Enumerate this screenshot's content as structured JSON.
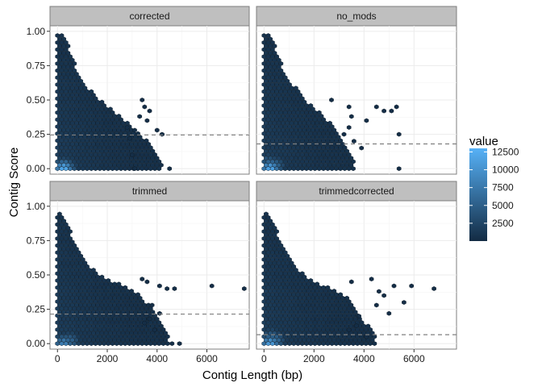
{
  "chart_data": {
    "type": "heatmap",
    "subtype": "hexbin",
    "xlabel": "Contig Length (bp)",
    "ylabel": "Contig Score",
    "xlim": [
      -300,
      7700
    ],
    "ylim": [
      -0.04,
      1.04
    ],
    "x_ticks": [
      0,
      2000,
      4000,
      6000
    ],
    "x_tick_labels": [
      "0",
      "2000",
      "4000",
      "6000"
    ],
    "y_ticks": [
      0,
      0.25,
      0.5,
      0.75,
      1.0
    ],
    "y_tick_labels": [
      "0.00",
      "0.25",
      "0.50",
      "0.75",
      "1.00"
    ],
    "grid": true,
    "legend": {
      "title": "value",
      "placement": "right",
      "min": 0,
      "max": 13000,
      "breaks": [
        2500,
        5000,
        7500,
        10000,
        12500
      ],
      "break_labels": [
        "2500",
        "5000",
        "7500",
        "10000",
        "12500"
      ],
      "low_color": "#132B43",
      "high_color": "#56B1F7"
    },
    "hex_size_x": 170,
    "hex_size_y": 0.0255,
    "panels": [
      {
        "name": "corrected",
        "hline": 0.245,
        "envelope": [
          [
            0,
            1.0
          ],
          [
            300,
            0.97
          ],
          [
            600,
            0.8
          ],
          [
            900,
            0.68
          ],
          [
            1200,
            0.6
          ],
          [
            1500,
            0.53
          ],
          [
            1800,
            0.5
          ],
          [
            2100,
            0.44
          ],
          [
            2400,
            0.4
          ],
          [
            2700,
            0.36
          ],
          [
            3000,
            0.3
          ],
          [
            3300,
            0.25
          ],
          [
            3600,
            0.2
          ],
          [
            3900,
            0.12
          ],
          [
            4200,
            0.05
          ]
        ],
        "outliers": [
          [
            3400,
            0.5
          ],
          [
            3500,
            0.45
          ],
          [
            3700,
            0.42
          ],
          [
            3300,
            0.38
          ],
          [
            3600,
            0.35
          ],
          [
            4200,
            0.25
          ],
          [
            4000,
            0.28
          ],
          [
            2800,
            0.3
          ],
          [
            3100,
            0.28
          ],
          [
            4500,
            0.0
          ],
          [
            2900,
            0.22
          ],
          [
            3000,
            0.1
          ],
          [
            3100,
            0.0
          ]
        ],
        "hotspots": [
          [
            250,
            0.0,
            12500
          ],
          [
            400,
            0.0,
            7000
          ],
          [
            150,
            0.02,
            5000
          ]
        ]
      },
      {
        "name": "no_mods",
        "hline": 0.18,
        "envelope": [
          [
            0,
            1.0
          ],
          [
            300,
            0.97
          ],
          [
            600,
            0.8
          ],
          [
            900,
            0.68
          ],
          [
            1200,
            0.6
          ],
          [
            1500,
            0.55
          ],
          [
            1800,
            0.48
          ],
          [
            2100,
            0.43
          ],
          [
            2400,
            0.38
          ],
          [
            2700,
            0.33
          ],
          [
            3000,
            0.25
          ],
          [
            3300,
            0.15
          ],
          [
            3600,
            0.05
          ]
        ],
        "outliers": [
          [
            2700,
            0.5
          ],
          [
            3400,
            0.45
          ],
          [
            4500,
            0.45
          ],
          [
            4800,
            0.42
          ],
          [
            5100,
            0.42
          ],
          [
            5300,
            0.45
          ],
          [
            5400,
            0.25
          ],
          [
            3500,
            0.38
          ],
          [
            3200,
            0.25
          ],
          [
            3600,
            0.2
          ],
          [
            3900,
            0.15
          ],
          [
            3400,
            0.3
          ],
          [
            5400,
            0.0
          ],
          [
            4100,
            0.35
          ]
        ],
        "hotspots": [
          [
            250,
            0.0,
            12000
          ],
          [
            450,
            0.02,
            6000
          ],
          [
            150,
            0.05,
            4500
          ]
        ]
      },
      {
        "name": "trimmed",
        "hline": 0.215,
        "envelope": [
          [
            0,
            0.96
          ],
          [
            300,
            0.92
          ],
          [
            600,
            0.78
          ],
          [
            900,
            0.65
          ],
          [
            1200,
            0.58
          ],
          [
            1500,
            0.53
          ],
          [
            1800,
            0.5
          ],
          [
            2100,
            0.47
          ],
          [
            2400,
            0.44
          ],
          [
            2700,
            0.42
          ],
          [
            3000,
            0.4
          ],
          [
            3300,
            0.35
          ],
          [
            3600,
            0.3
          ],
          [
            3900,
            0.22
          ],
          [
            4200,
            0.15
          ],
          [
            4500,
            0.05
          ]
        ],
        "outliers": [
          [
            3400,
            0.47
          ],
          [
            3600,
            0.45
          ],
          [
            4100,
            0.42
          ],
          [
            4400,
            0.4
          ],
          [
            4700,
            0.4
          ],
          [
            6200,
            0.42
          ],
          [
            7500,
            0.4
          ],
          [
            3800,
            0.28
          ],
          [
            4100,
            0.22
          ],
          [
            3500,
            0.15
          ],
          [
            3900,
            0.1
          ],
          [
            4600,
            0.0
          ],
          [
            4900,
            0.0
          ],
          [
            3700,
            0.18
          ]
        ],
        "hotspots": [
          [
            250,
            0.0,
            8500
          ],
          [
            500,
            0.02,
            5500
          ]
        ]
      },
      {
        "name": "trimmedcorrected",
        "hline": 0.065,
        "envelope": [
          [
            0,
            0.96
          ],
          [
            300,
            0.93
          ],
          [
            600,
            0.78
          ],
          [
            900,
            0.68
          ],
          [
            1200,
            0.6
          ],
          [
            1500,
            0.52
          ],
          [
            1800,
            0.48
          ],
          [
            2100,
            0.44
          ],
          [
            2400,
            0.42
          ],
          [
            2700,
            0.4
          ],
          [
            3000,
            0.38
          ],
          [
            3300,
            0.35
          ],
          [
            3600,
            0.28
          ],
          [
            3900,
            0.2
          ],
          [
            4200,
            0.12
          ],
          [
            4500,
            0.05
          ]
        ],
        "outliers": [
          [
            4300,
            0.47
          ],
          [
            5200,
            0.42
          ],
          [
            5900,
            0.42
          ],
          [
            6800,
            0.4
          ],
          [
            4800,
            0.35
          ],
          [
            5600,
            0.3
          ],
          [
            4500,
            0.28
          ],
          [
            5000,
            0.22
          ],
          [
            3400,
            0.1
          ],
          [
            3700,
            0.13
          ],
          [
            4100,
            0.05
          ],
          [
            3800,
            0.2
          ],
          [
            4600,
            0.38
          ],
          [
            3500,
            0.45
          ]
        ],
        "hotspots": [
          [
            250,
            0.0,
            11000
          ],
          [
            450,
            0.02,
            6500
          ],
          [
            300,
            0.05,
            5000
          ]
        ]
      }
    ]
  }
}
